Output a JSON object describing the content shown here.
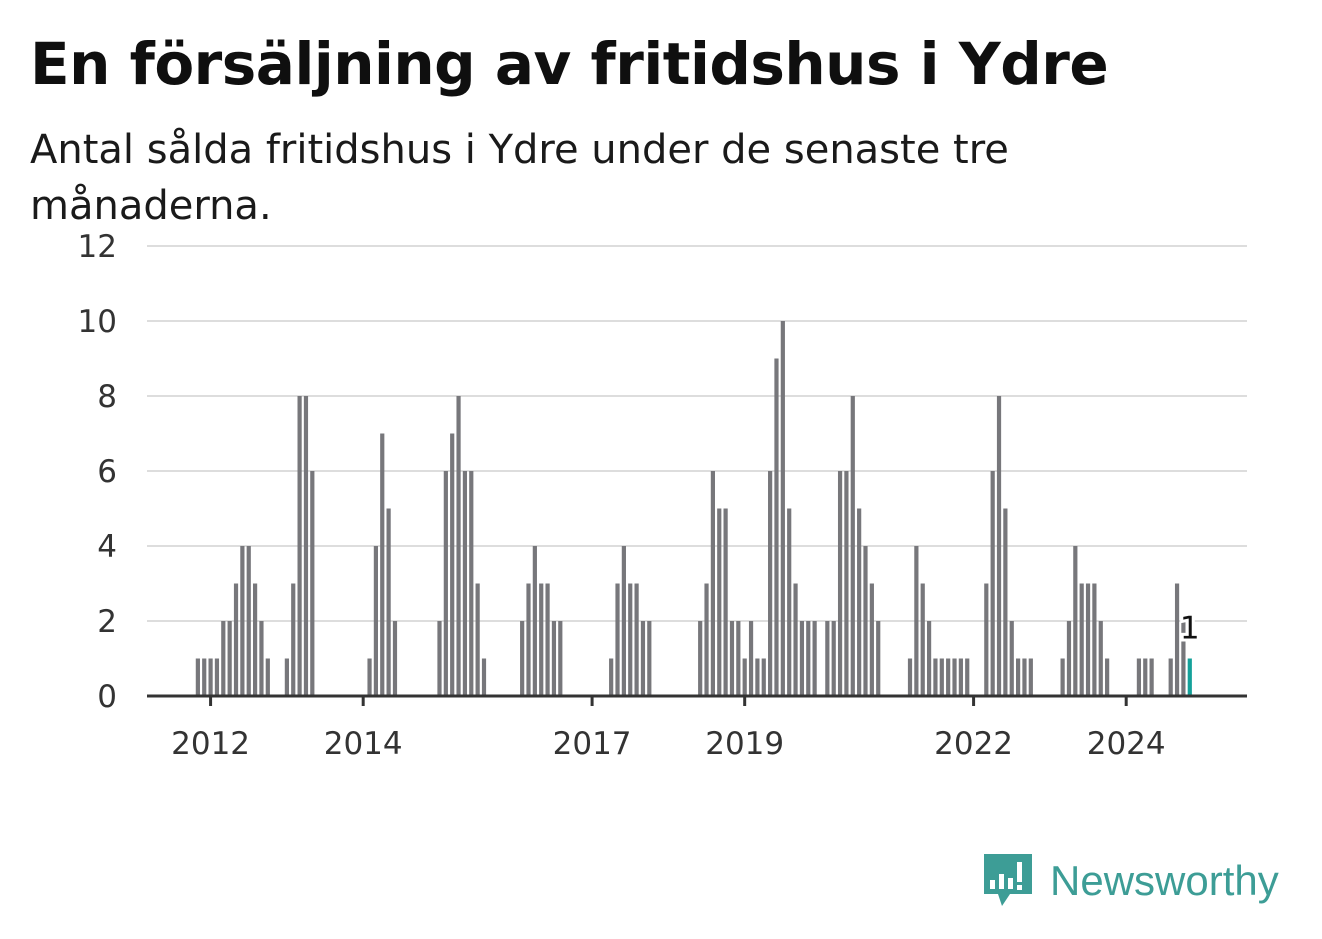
{
  "title": "En försäljning av fritidshus i Ydre",
  "subtitle": "Antal sålda fritidshus i Ydre under de senaste tre månaderna.",
  "brand": {
    "name": "Newsworthy",
    "color": "#3d9d96",
    "icon": "newsworthy-logo-icon"
  },
  "colors": {
    "bar": "#77777b",
    "highlight": "#14a19a",
    "grid": "#dddddd",
    "axis": "#333333"
  },
  "chart_data": {
    "type": "bar",
    "title": "En försäljning av fritidshus i Ydre",
    "subtitle": "Antal sålda fritidshus i Ydre under de senaste tre månaderna.",
    "xlabel": "",
    "ylabel": "",
    "ylim": [
      0,
      12
    ],
    "yticks": [
      "0",
      "2",
      "4",
      "6",
      "8",
      "10",
      "12"
    ],
    "xlim": [
      "2011-03",
      "2025-08"
    ],
    "xticks": [
      {
        "label": "2012",
        "x": "2012-01"
      },
      {
        "label": "2014",
        "x": "2014-01"
      },
      {
        "label": "2017",
        "x": "2017-01"
      },
      {
        "label": "2019",
        "x": "2019-01"
      },
      {
        "label": "2022",
        "x": "2022-01"
      },
      {
        "label": "2024",
        "x": "2024-01"
      }
    ],
    "grid": true,
    "legend": "none",
    "series": [
      {
        "x": [
          "2011-11",
          "2011-12",
          "2012-01",
          "2012-02",
          "2012-03",
          "2012-04",
          "2012-05",
          "2012-06",
          "2012-07",
          "2012-08",
          "2012-09",
          "2012-10",
          "2013-01",
          "2013-02",
          "2013-03",
          "2013-04",
          "2013-05",
          "2014-02",
          "2014-03",
          "2014-04",
          "2014-05",
          "2014-06",
          "2015-01",
          "2015-02",
          "2015-03",
          "2015-04",
          "2015-05",
          "2015-06",
          "2015-07",
          "2015-08",
          "2016-02",
          "2016-03",
          "2016-04",
          "2016-05",
          "2016-06",
          "2016-07",
          "2016-08",
          "2017-04",
          "2017-05",
          "2017-06",
          "2017-07",
          "2017-08",
          "2017-09",
          "2017-10",
          "2018-06",
          "2018-07",
          "2018-08",
          "2018-09",
          "2018-10",
          "2018-11",
          "2018-12",
          "2019-01",
          "2019-02",
          "2019-03",
          "2019-04",
          "2019-05",
          "2019-06",
          "2019-07",
          "2019-08",
          "2019-09",
          "2019-10",
          "2019-11",
          "2019-12",
          "2020-02",
          "2020-03",
          "2020-04",
          "2020-05",
          "2020-06",
          "2020-07",
          "2020-08",
          "2020-09",
          "2020-10",
          "2021-03",
          "2021-04",
          "2021-05",
          "2021-06",
          "2021-07",
          "2021-08",
          "2021-09",
          "2021-10",
          "2021-11",
          "2021-12",
          "2022-03",
          "2022-04",
          "2022-05",
          "2022-06",
          "2022-07",
          "2022-08",
          "2022-09",
          "2022-10",
          "2023-03",
          "2023-04",
          "2023-05",
          "2023-06",
          "2023-07",
          "2023-08",
          "2023-09",
          "2023-10",
          "2024-03",
          "2024-04",
          "2024-05",
          "2024-08",
          "2024-09",
          "2024-10",
          "2024-11"
        ],
        "values": [
          1,
          1,
          1,
          1,
          2,
          2,
          3,
          4,
          4,
          3,
          2,
          1,
          1,
          3,
          8,
          8,
          6,
          1,
          4,
          7,
          5,
          2,
          2,
          6,
          7,
          8,
          6,
          6,
          3,
          1,
          2,
          3,
          4,
          3,
          3,
          2,
          2,
          1,
          3,
          4,
          3,
          3,
          2,
          2,
          2,
          3,
          6,
          5,
          5,
          2,
          2,
          1,
          2,
          1,
          1,
          6,
          9,
          10,
          5,
          3,
          2,
          2,
          2,
          2,
          2,
          6,
          6,
          8,
          5,
          4,
          3,
          2,
          1,
          4,
          3,
          2,
          1,
          1,
          1,
          1,
          1,
          1,
          3,
          6,
          8,
          5,
          2,
          1,
          1,
          1,
          1,
          2,
          4,
          3,
          3,
          3,
          2,
          1,
          1,
          1,
          1,
          1,
          3,
          2,
          1
        ]
      }
    ],
    "highlight": {
      "x": "2024-11",
      "value": 1,
      "label": "1"
    }
  }
}
